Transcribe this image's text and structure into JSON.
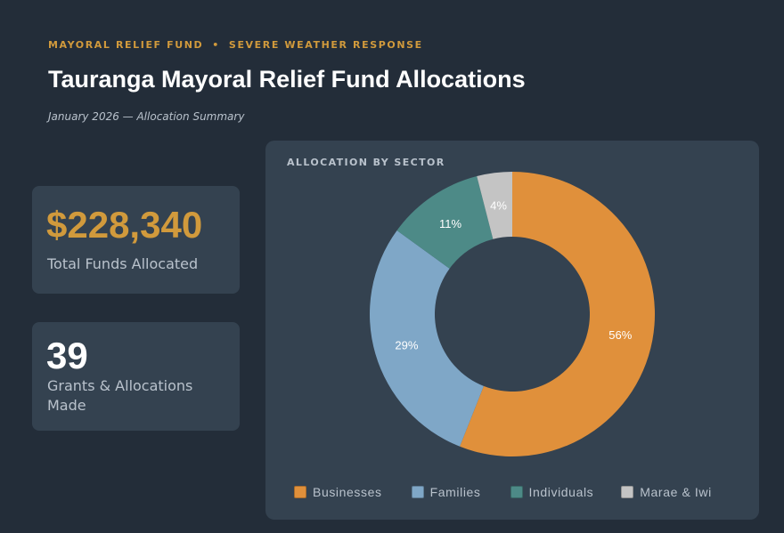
{
  "header": {
    "eyebrow_left": "MAYORAL RELIEF FUND",
    "eyebrow_sep": "•",
    "eyebrow_right": "SEVERE WEATHER RESPONSE",
    "title": "Tauranga Mayoral Relief Fund Allocations",
    "subtitle": "January 2026 — Allocation Summary"
  },
  "stats": {
    "funds_value": "$228,340",
    "funds_label": "Total Funds Allocated",
    "grants_value": "39",
    "grants_label": "Grants & Allocations Made"
  },
  "colors": {
    "accent": "#d19a3c",
    "background": "#232d39",
    "card": "#344250"
  },
  "chart_data": {
    "type": "pie",
    "variant": "donut",
    "title": "ALLOCATION BY SECTOR",
    "categories": [
      "Businesses",
      "Families",
      "Individuals",
      "Marae & Iwi"
    ],
    "values": [
      56,
      29,
      11,
      4
    ],
    "labels": [
      "56%",
      "29%",
      "11%",
      "4%"
    ],
    "colors": [
      "#e0903b",
      "#7fa7c7",
      "#4d8a87",
      "#c4c4c4"
    ],
    "legend_position": "bottom"
  }
}
